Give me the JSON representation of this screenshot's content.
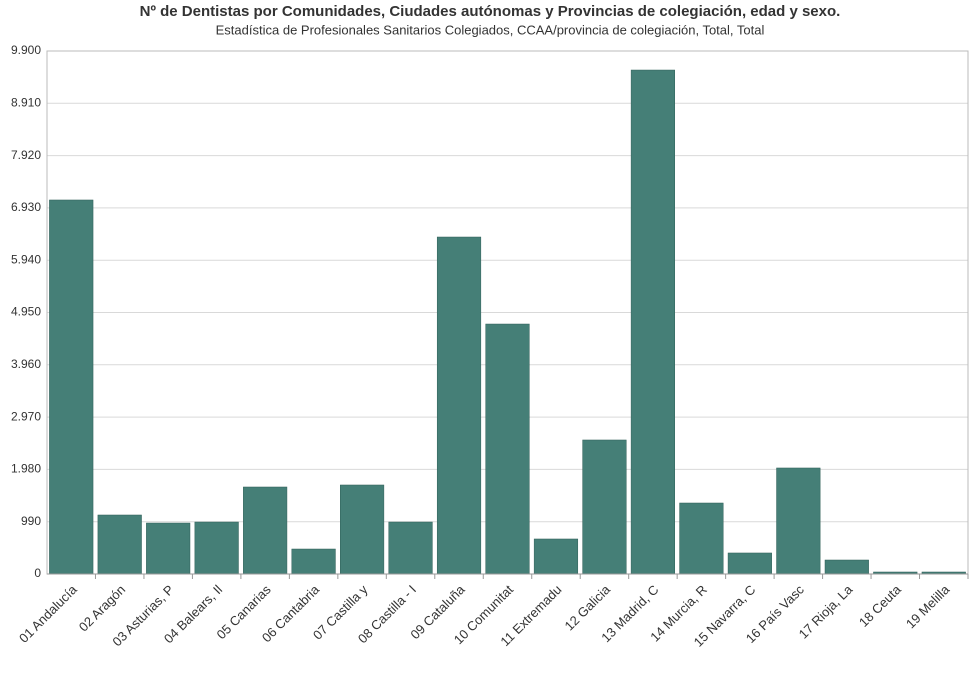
{
  "chart_data": {
    "type": "bar",
    "title": "Nº de Dentistas por Comunidades, Ciudades autónomas y Provincias de colegiación, edad y sexo.",
    "subtitle": "Estadística de Profesionales Sanitarios Colegiados, CCAA/provincia de colegiación, Total, Total",
    "categories": [
      "01 Andalucía",
      "02 Aragón",
      "03 Asturias, P",
      "04 Balears, Il",
      "05 Canarias",
      "06 Cantabria",
      "07 Castilla y",
      "08 Castilla - I",
      "09 Cataluña",
      "10 Comunitat",
      "11 Extremadu",
      "12 Galicia",
      "13 Madrid, C",
      "14 Murcia, R",
      "15 Navarra, C",
      "16 País Vasc",
      "17 Rioja, La",
      "18 Ceuta",
      "19 Melilla"
    ],
    "values": [
      7080,
      1117,
      965,
      984,
      1647,
      473,
      1685,
      984,
      6379,
      4732,
      663,
      2537,
      9540,
      1344,
      398,
      2007,
      265,
      38,
      38
    ],
    "color": "#457f77",
    "ylim": [
      0,
      9900
    ],
    "yticks": [
      0,
      990,
      {
        "value": 1980,
        "label": "1.980"
      },
      {
        "value": 2970,
        "label": "2.970"
      },
      {
        "value": 3960,
        "label": "3.960"
      },
      {
        "value": 4950,
        "label": "4.950"
      },
      {
        "value": 5940,
        "label": "5.940"
      },
      {
        "value": 6930,
        "label": "6.930"
      },
      {
        "value": 7920,
        "label": "7.920"
      },
      {
        "value": 8910,
        "label": "8.910"
      },
      {
        "value": 9900,
        "label": "9.900"
      }
    ],
    "grid": true
  }
}
